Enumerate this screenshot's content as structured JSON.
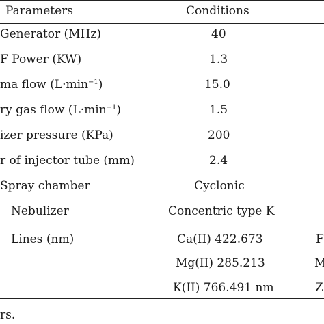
{
  "table": {
    "headers": [
      "Parameters",
      "Conditions"
    ],
    "rows": [
      {
        "param": "Generator (MHz)",
        "condition": "40",
        "extra": ""
      },
      {
        "param": "F Power (KW)",
        "condition": "1.3",
        "extra": ""
      },
      {
        "param_pre": "ma flow (L·min",
        "param_sup": "−1",
        "param_post": ")",
        "condition": "15.0",
        "extra": ""
      },
      {
        "param_pre": "ry gas flow (L·min",
        "param_sup": "−1",
        "param_post": ")",
        "condition": "1.5",
        "extra": ""
      },
      {
        "param": "izer pressure (KPa)",
        "condition": "200",
        "extra": ""
      },
      {
        "param": "r of injector tube (mm)",
        "condition": "2.4",
        "extra": ""
      },
      {
        "param": "Spray chamber",
        "condition": "Cyclonic",
        "extra": ""
      },
      {
        "param": "Nebulizer",
        "condition": "Concentric type K",
        "extra": ""
      },
      {
        "param": "Lines (nm)",
        "condition": "Ca(II) 422.673",
        "extra": "F"
      },
      {
        "param": "",
        "condition": "Mg(II) 285.213",
        "extra": "M"
      },
      {
        "param": "",
        "condition": "K(II) 766.491 nm",
        "extra": "Z"
      }
    ]
  },
  "footnote": "rs."
}
